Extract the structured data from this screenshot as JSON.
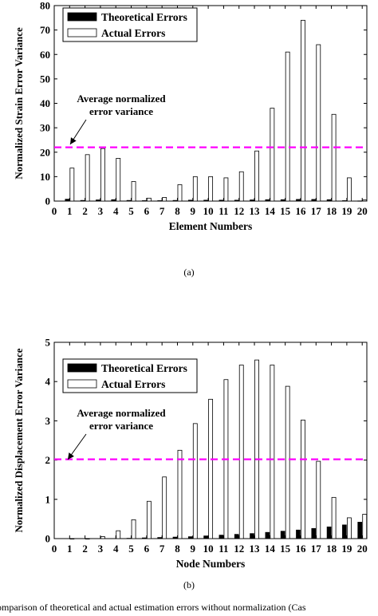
{
  "charts": {
    "strain": {
      "ylabel": "Normalized Strain Error Variance",
      "xlabel": "Element Numbers",
      "subcaption": "(a)",
      "legend": [
        "Theoretical Errors",
        "Actual Errors"
      ],
      "annotation": [
        "Average normalized",
        "error variance"
      ]
    },
    "displacement": {
      "ylabel": "Normalized Displacement Error Variance",
      "xlabel": "Node Numbers",
      "subcaption": "(b)",
      "legend": [
        "Theoretical Errors",
        "Actual Errors"
      ],
      "annotation": [
        "Average normalized",
        "error variance"
      ]
    }
  },
  "figure_caption": "omparison of theoretical and actual estimation errors without normalization (Cas",
  "colors": {
    "theoretical": "#000000",
    "actual": "#ffffff",
    "average_line": "#ff00ff",
    "axis": "#000000"
  },
  "chart_data": [
    {
      "type": "bar",
      "ylabel": "Normalized Strain Error Variance",
      "xlabel": "Element Numbers",
      "x_ticks": [
        0,
        1,
        2,
        3,
        4,
        5,
        6,
        7,
        8,
        9,
        10,
        11,
        12,
        13,
        14,
        15,
        16,
        17,
        18,
        19,
        20
      ],
      "y_ticks": [
        0,
        10,
        20,
        30,
        40,
        50,
        60,
        70,
        80
      ],
      "xlim": [
        0,
        20.3
      ],
      "ylim": [
        0,
        80
      ],
      "categories": [
        1,
        2,
        3,
        4,
        5,
        6,
        7,
        8,
        9,
        10,
        11,
        12,
        13,
        14,
        15,
        16,
        17,
        18,
        19,
        20
      ],
      "series": [
        {
          "name": "Theoretical Errors",
          "values": [
            0.8,
            0.3,
            0.5,
            0.6,
            0.3,
            0.2,
            0.2,
            0.3,
            0.4,
            0.4,
            0.4,
            0.4,
            0.5,
            0.6,
            0.6,
            0.7,
            0.7,
            0.6,
            0.2,
            0.1
          ]
        },
        {
          "name": "Actual Errors",
          "values": [
            13.5,
            19,
            21.5,
            17.5,
            8,
            1.2,
            1.5,
            6.7,
            10,
            10,
            9.5,
            12,
            20.5,
            38,
            61,
            74,
            64,
            35.5,
            9.5,
            0.5
          ]
        }
      ],
      "average_line": 22,
      "annotation": "Average normalized error variance",
      "legend_position": "top-left"
    },
    {
      "type": "bar",
      "ylabel": "Normalized Displacement Error Variance",
      "xlabel": "Node Numbers",
      "x_ticks": [
        0,
        1,
        2,
        3,
        4,
        5,
        6,
        7,
        8,
        9,
        10,
        11,
        12,
        13,
        14,
        15,
        16,
        17,
        18,
        19,
        20
      ],
      "y_ticks": [
        0,
        1,
        2,
        3,
        4,
        5
      ],
      "xlim": [
        0,
        20.3
      ],
      "ylim": [
        0,
        5
      ],
      "categories": [
        1,
        2,
        3,
        4,
        5,
        6,
        7,
        8,
        9,
        10,
        11,
        12,
        13,
        14,
        15,
        16,
        17,
        18,
        19,
        20
      ],
      "series": [
        {
          "name": "Theoretical Errors",
          "values": [
            0.0,
            0.0,
            0.0,
            0.0,
            0.01,
            0.02,
            0.03,
            0.04,
            0.05,
            0.07,
            0.09,
            0.11,
            0.13,
            0.16,
            0.19,
            0.22,
            0.26,
            0.3,
            0.35,
            0.42
          ]
        },
        {
          "name": "Actual Errors",
          "values": [
            0.0,
            0.0,
            0.05,
            0.2,
            0.48,
            0.95,
            1.57,
            2.25,
            2.93,
            3.55,
            4.05,
            4.42,
            4.55,
            4.42,
            3.88,
            3.02,
            1.97,
            1.05,
            0.53,
            0.62
          ]
        }
      ],
      "average_line": 2.02,
      "annotation": "Average normalized error variance",
      "legend_position": "top-left"
    }
  ]
}
